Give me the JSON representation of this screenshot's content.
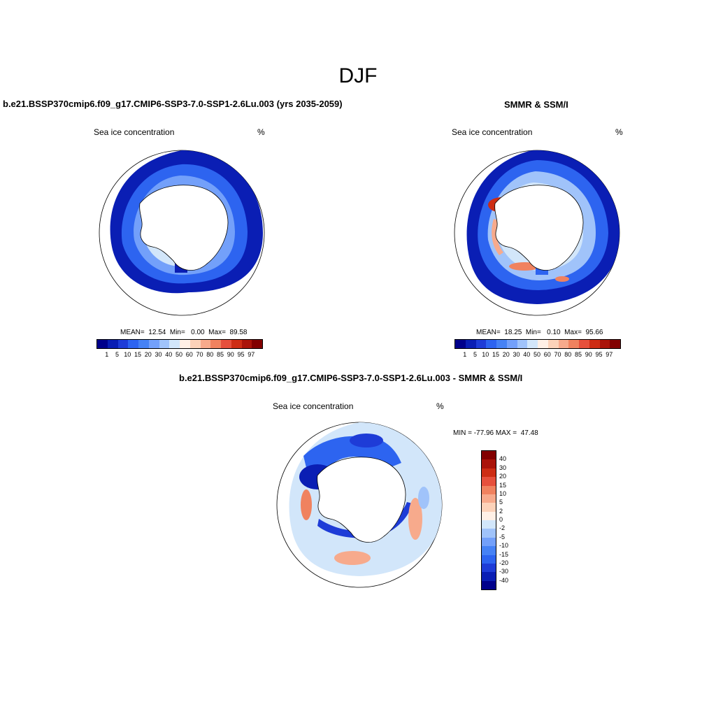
{
  "figure": {
    "title": "DJF"
  },
  "panels": [
    {
      "id": "model",
      "title": "b.e21.BSSP370cmip6.f09_g17.CMIP6-SSP3-7.0-SSP1-2.6Lu.003 (yrs 2035-2059)",
      "variable": "Sea ice concentration",
      "units": "%",
      "stats": "MEAN=  12.54  Min=   0.00  Max=  89.58",
      "mean": 12.54,
      "min": 0.0,
      "max": 89.58
    },
    {
      "id": "obs",
      "title": "SMMR & SSM/I",
      "variable": "Sea ice concentration",
      "units": "%",
      "stats": "MEAN=  18.25  Min=   0.10  Max=  95.66",
      "mean": 18.25,
      "min": 0.1,
      "max": 95.66
    },
    {
      "id": "diff",
      "title": "b.e21.BSSP370cmip6.f09_g17.CMIP6-SSP3-7.0-SSP1-2.6Lu.003 - SMMR & SSM/I",
      "variable": "Sea ice concentration",
      "units": "%",
      "stats": "MIN = -77.96 MAX =  47.48",
      "min": -77.96,
      "max": 47.48
    }
  ],
  "colorbar_conc": {
    "labels": [
      "1",
      "5",
      "10",
      "15",
      "20",
      "30",
      "40",
      "50",
      "60",
      "70",
      "80",
      "85",
      "90",
      "95",
      "97"
    ],
    "colors": [
      "#00008b",
      "#0a1eb4",
      "#1e3cd7",
      "#2d64f0",
      "#4682f5",
      "#73a0fa",
      "#a0c3fa",
      "#d2e6fa",
      "#fff0e6",
      "#fcd2b9",
      "#f7aa8c",
      "#f0825f",
      "#e6503c",
      "#cd2d14",
      "#aa140a",
      "#820000"
    ]
  },
  "colorbar_diff": {
    "labels": [
      "40",
      "30",
      "20",
      "15",
      "10",
      "5",
      "2",
      "0",
      "-2",
      "-5",
      "-10",
      "-15",
      "-20",
      "-30",
      "-40"
    ],
    "colors": [
      "#820000",
      "#aa140a",
      "#cd2d14",
      "#e6503c",
      "#f0825f",
      "#f7aa8c",
      "#fcd2b9",
      "#fff0e6",
      "#d2e6fa",
      "#a0c3fa",
      "#73a0fa",
      "#4682f5",
      "#2d64f0",
      "#1e3cd7",
      "#0a1eb4",
      "#00008b"
    ]
  },
  "chart_data": {
    "type": "heatmap",
    "title": "DJF",
    "variable": "Sea ice concentration (%)",
    "maps": [
      {
        "name": "model (yrs 2035-2059)",
        "mean": 12.54,
        "min": 0.0,
        "max": 89.58,
        "levels": [
          1,
          5,
          10,
          15,
          20,
          30,
          40,
          50,
          60,
          70,
          80,
          85,
          90,
          95,
          97
        ]
      },
      {
        "name": "SMMR & SSM/I",
        "mean": 18.25,
        "min": 0.1,
        "max": 95.66,
        "levels": [
          1,
          5,
          10,
          15,
          20,
          30,
          40,
          50,
          60,
          70,
          80,
          85,
          90,
          95,
          97
        ]
      },
      {
        "name": "model - SMMR & SSM/I",
        "min": -77.96,
        "max": 47.48,
        "levels": [
          -40,
          -30,
          -20,
          -15,
          -10,
          -5,
          -2,
          0,
          2,
          5,
          10,
          15,
          20,
          30,
          40
        ]
      }
    ]
  }
}
